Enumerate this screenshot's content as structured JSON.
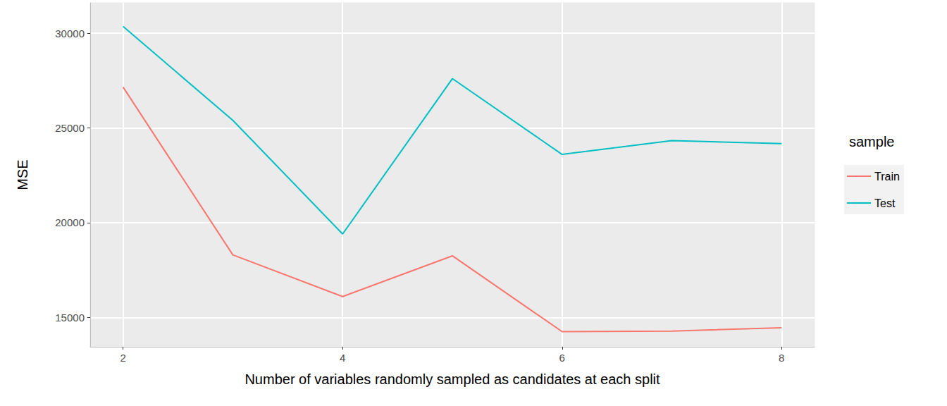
{
  "chart_data": {
    "type": "line",
    "x_label": "Number of variables randomly sampled as candidates at each split",
    "y_label": "MSE",
    "legend_title": "sample",
    "legend": "right",
    "grid": true,
    "x": [
      2,
      3,
      4,
      5,
      6,
      7,
      8
    ],
    "series": [
      {
        "name": "Train",
        "color": "#F8766D",
        "values": [
          27150,
          18300,
          16100,
          18250,
          14250,
          14280,
          14450
        ]
      },
      {
        "name": "Test",
        "color": "#00BFC4",
        "values": [
          30350,
          25400,
          19400,
          27600,
          23600,
          24330,
          24170
        ]
      }
    ],
    "xlim": [
      1.7,
      8.3
    ],
    "xticks": [
      2,
      4,
      6,
      8
    ],
    "ylim": [
      13450,
      31600
    ],
    "yticks": [
      15000,
      20000,
      25000,
      30000
    ]
  }
}
